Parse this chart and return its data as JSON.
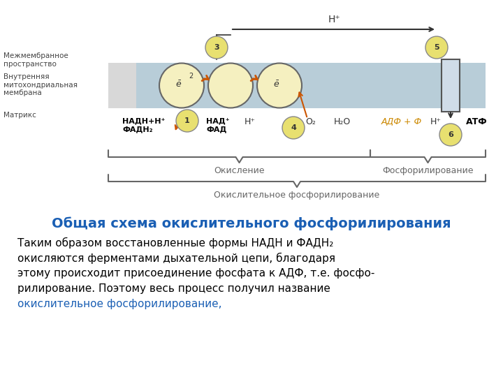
{
  "title": "Общая схема окислительного фосфорилирования",
  "title_color": "#1a5fb4",
  "title_fontsize": 14,
  "bg_color": "#ffffff",
  "membrane_color": "#b8cdd8",
  "label_intermembrane": "Межмембранное\nпространство",
  "label_inner_membrane": "Внутренняя\nмитохондриальная\nмембрана",
  "label_matrix": "Матрикс",
  "label_oxidation": "Окисление",
  "label_phosphorylation": "Фосфорилирование",
  "label_oxidative_phosphorylation": "Окислительное фосфорилирование",
  "body_text_lines": [
    "Таким образом восстановленные формы НАДН и ФАДН₂",
    "окисляются ферментами дыхательной цепи, благодаря",
    "этому происходит присоединение фосфата к АДФ, т.е. фосфо-",
    "рилирование. Поэтому весь процесс получил название"
  ],
  "body_blue_text": "окислительное фосфорилирование,",
  "body_blue_color": "#1a5fb4",
  "circle_color": "#f5f0c0",
  "circle_edge_color": "#666666",
  "arrow_color": "#cc5500",
  "yellow_circle_color": "#e8e070"
}
